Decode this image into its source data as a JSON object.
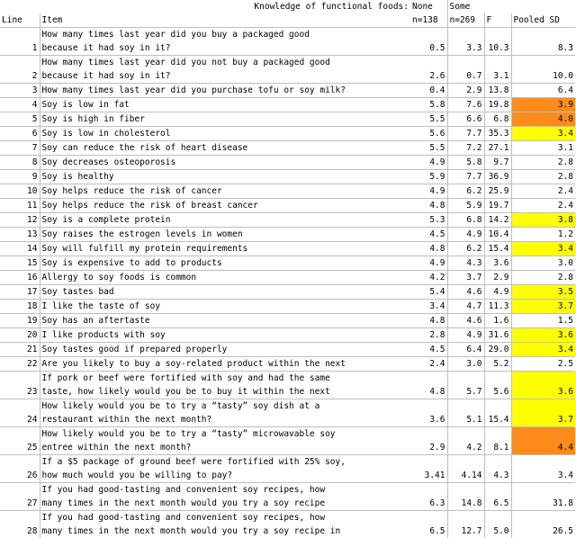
{
  "header": {
    "title": "Knowledge of functional foods:",
    "none": "None",
    "some": "Some",
    "line": "Line",
    "item": "Item",
    "n_none": "n=138",
    "n_some": "n=269",
    "f": "F",
    "pooled_sd": "Pooled SD"
  },
  "colors": {
    "yellow": "#ffff00",
    "orange": "#ff8c1a"
  },
  "rows": [
    {
      "line": "1",
      "item_lines": [
        "How many times last year did you buy a packaged good",
        "because it had soy in it?"
      ],
      "none": "0.5",
      "some": "3.3",
      "f": "10.3",
      "sd": "8.3",
      "hl": ""
    },
    {
      "line": "2",
      "item_lines": [
        "How many times last year did you not buy a packaged good",
        "because it had soy in it?"
      ],
      "none": "2.6",
      "some": "0.7",
      "f": "3.1",
      "sd": "10.0",
      "hl": ""
    },
    {
      "line": "3",
      "item_lines": [
        "How many times last year did you purchase tofu or soy milk?"
      ],
      "none": "0.4",
      "some": "2.9",
      "f": "13.8",
      "sd": "6.4",
      "hl": ""
    },
    {
      "line": "4",
      "item_lines": [
        "Soy is low in fat"
      ],
      "none": "5.8",
      "some": "7.6",
      "f": "19.8",
      "sd": "3.9",
      "hl": "orange"
    },
    {
      "line": "5",
      "item_lines": [
        "Soy is high in fiber"
      ],
      "none": "5.5",
      "some": "6.6",
      "f": "6.8",
      "sd": "4.0",
      "hl": "orange"
    },
    {
      "line": "6",
      "item_lines": [
        "Soy is low in cholesterol"
      ],
      "none": "5.6",
      "some": "7.7",
      "f": "35.3",
      "sd": "3.4",
      "hl": "yellow"
    },
    {
      "line": "7",
      "item_lines": [
        "Soy can reduce the risk of heart disease"
      ],
      "none": "5.5",
      "some": "7.2",
      "f": "27.1",
      "sd": "3.1",
      "hl": ""
    },
    {
      "line": "8",
      "item_lines": [
        "Soy decreases osteoporosis"
      ],
      "none": "4.9",
      "some": "5.8",
      "f": "9.7",
      "sd": "2.8",
      "hl": ""
    },
    {
      "line": "9",
      "item_lines": [
        "Soy is healthy"
      ],
      "none": "5.9",
      "some": "7.7",
      "f": "36.9",
      "sd": "2.8",
      "hl": ""
    },
    {
      "line": "10",
      "item_lines": [
        "Soy helps reduce the risk of cancer"
      ],
      "none": "4.9",
      "some": "6.2",
      "f": "25.9",
      "sd": "2.4",
      "hl": ""
    },
    {
      "line": "11",
      "item_lines": [
        "Soy helps reduce the risk of breast cancer"
      ],
      "none": "4.8",
      "some": "5.9",
      "f": "19.7",
      "sd": "2.4",
      "hl": ""
    },
    {
      "line": "12",
      "item_lines": [
        "Soy is a complete protein"
      ],
      "none": "5.3",
      "some": "6.8",
      "f": "14.2",
      "sd": "3.8",
      "hl": "yellow"
    },
    {
      "line": "13",
      "item_lines": [
        "Soy raises the estrogen levels in women"
      ],
      "none": "4.5",
      "some": "4.9",
      "f": "10.4",
      "sd": "1.2",
      "hl": ""
    },
    {
      "line": "14",
      "item_lines": [
        "Soy will fulfill my protein requirements"
      ],
      "none": "4.8",
      "some": "6.2",
      "f": "15.4",
      "sd": "3.4",
      "hl": "yellow"
    },
    {
      "line": "15",
      "item_lines": [
        "Soy is expensive to add to products"
      ],
      "none": "4.9",
      "some": "4.3",
      "f": "3.6",
      "sd": "3.0",
      "hl": ""
    },
    {
      "line": "16",
      "item_lines": [
        "Allergy to soy foods is common"
      ],
      "none": "4.2",
      "some": "3.7",
      "f": "2.9",
      "sd": "2.8",
      "hl": ""
    },
    {
      "line": "17",
      "item_lines": [
        "Soy tastes bad"
      ],
      "none": "5.4",
      "some": "4.6",
      "f": "4.9",
      "sd": "3.5",
      "hl": "yellow"
    },
    {
      "line": "18",
      "item_lines": [
        "I like the taste of soy"
      ],
      "none": "3.4",
      "some": "4.7",
      "f": "11.3",
      "sd": "3.7",
      "hl": "yellow"
    },
    {
      "line": "19",
      "item_lines": [
        "Soy has an aftertaste"
      ],
      "none": "4.8",
      "some": "4.6",
      "f": "1.6",
      "sd": "1.5",
      "hl": ""
    },
    {
      "line": "20",
      "item_lines": [
        "I like products with soy"
      ],
      "none": "2.8",
      "some": "4.9",
      "f": "31.6",
      "sd": "3.6",
      "hl": "yellow"
    },
    {
      "line": "21",
      "item_lines": [
        "Soy tastes good if prepared properly"
      ],
      "none": "4.5",
      "some": "6.4",
      "f": "29.0",
      "sd": "3.4",
      "hl": "yellow"
    },
    {
      "line": "22",
      "item_lines": [
        "Are you likely to buy a soy-related product within the next"
      ],
      "none": "2.4",
      "some": "3.0",
      "f": "5.2",
      "sd": "2.5",
      "hl": ""
    },
    {
      "line": "23",
      "item_lines": [
        "If pork or beef were fortified with soy and had the same",
        "taste, how likely would you be to buy it within the next"
      ],
      "none": "4.8",
      "some": "5.7",
      "f": "5.6",
      "sd": "3.6",
      "hl": "yellow"
    },
    {
      "line": "24",
      "item_lines": [
        "How likely would you be to try a “tasty” soy dish at a",
        "restaurant within the next month?"
      ],
      "none": "3.6",
      "some": "5.1",
      "f": "15.4",
      "sd": "3.7",
      "hl": "yellow"
    },
    {
      "line": "25",
      "item_lines": [
        "How likely would you be to try a “tasty” microwavable soy",
        "entree within the next month?"
      ],
      "none": "2.9",
      "some": "4.2",
      "f": "8.1",
      "sd": "4.4",
      "hl": "orange"
    },
    {
      "line": "26",
      "item_lines": [
        "If a $5 package of ground beef were fortified with 25% soy,",
        "how much would you be willing to pay?"
      ],
      "none": "3.41",
      "some": "4.14",
      "f": "4.3",
      "sd": "3.4",
      "hl": ""
    },
    {
      "line": "27",
      "item_lines": [
        "If you had good-tasting and convenient soy recipes, how",
        "many times in the next month would you try a soy recipe"
      ],
      "none": "6.3",
      "some": "14.8",
      "f": "6.5",
      "sd": "31.8",
      "hl": ""
    },
    {
      "line": "28",
      "item_lines": [
        "If you had good-tasting and convenient soy recipes, how",
        "many times in the next month would you try a soy recipe in"
      ],
      "none": "6.5",
      "some": "12.7",
      "f": "5.0",
      "sd": "26.5",
      "hl": ""
    }
  ]
}
